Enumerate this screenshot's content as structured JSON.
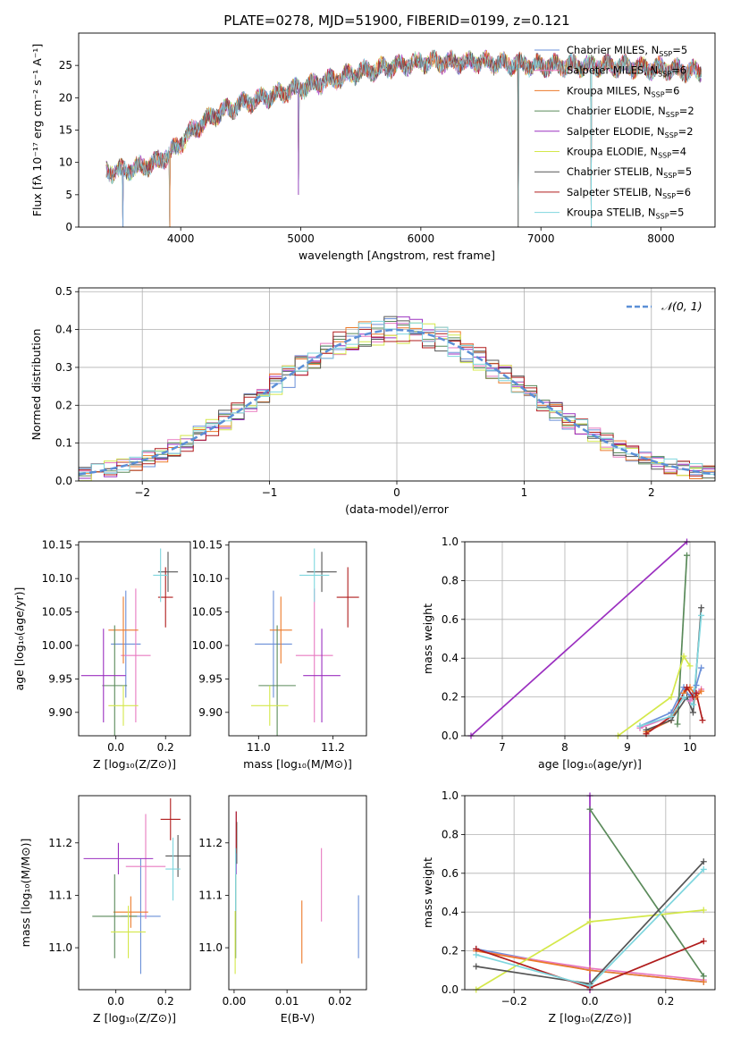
{
  "title": "PLATE=0278, MJD=51900, FIBERID=0199, z=0.121",
  "legend_entries": [
    {
      "label": "Chabrier MILES, N",
      "sub": "SSP",
      "tail": "=5",
      "color": "#6a8fd8"
    },
    {
      "label": "Salpeter MILES, N",
      "sub": "SSP",
      "tail": "=6",
      "color": "#e87ac0"
    },
    {
      "label": "Kroupa MILES, N",
      "sub": "SSP",
      "tail": "=6",
      "color": "#ec7a2a"
    },
    {
      "label": "Chabrier ELODIE, N",
      "sub": "SSP",
      "tail": "=2",
      "color": "#5a8a5a"
    },
    {
      "label": "Salpeter ELODIE, N",
      "sub": "SSP",
      "tail": "=2",
      "color": "#9b30c0"
    },
    {
      "label": "Kroupa ELODIE, N",
      "sub": "SSP",
      "tail": "=4",
      "color": "#d4e84a"
    },
    {
      "label": "Chabrier STELIB, N",
      "sub": "SSP",
      "tail": "=5",
      "color": "#555555"
    },
    {
      "label": "Salpeter STELIB, N",
      "sub": "SSP",
      "tail": "=6",
      "color": "#b01c1c"
    },
    {
      "label": "Kroupa STELIB, N",
      "sub": "SSP",
      "tail": "=5",
      "color": "#7fd6de"
    }
  ],
  "chart_data": [
    {
      "type": "line",
      "panel": "spectrum",
      "xlabel": "wavelength [Angstrom, rest frame]",
      "ylabel": "Flux [fλ 10⁻¹⁷ erg cm⁻² s⁻¹ A⁻¹]",
      "xlim": [
        3150,
        8450
      ],
      "ylim": [
        0,
        30
      ],
      "xticks": [
        4000,
        5000,
        6000,
        7000,
        8000
      ],
      "yticks": [
        0,
        5,
        10,
        15,
        20,
        25
      ],
      "grid": false,
      "legend": "right",
      "spectrum_range": [
        3380,
        8340
      ],
      "continuum": [
        [
          3380,
          8.5
        ],
        [
          3600,
          9
        ],
        [
          3800,
          10
        ],
        [
          3950,
          12
        ],
        [
          4100,
          15
        ],
        [
          4300,
          17.5
        ],
        [
          4500,
          19
        ],
        [
          4800,
          20.5
        ],
        [
          5100,
          22
        ],
        [
          5500,
          24
        ],
        [
          6000,
          25.5
        ],
        [
          6500,
          25.5
        ],
        [
          7000,
          25
        ],
        [
          7500,
          25
        ],
        [
          8000,
          24.5
        ],
        [
          8340,
          24
        ]
      ],
      "dropouts": [
        [
          3520,
          0
        ],
        [
          3910,
          0
        ],
        [
          4980,
          5
        ],
        [
          6810,
          0
        ],
        [
          7420,
          0
        ]
      ]
    },
    {
      "type": "histogram",
      "panel": "residuals",
      "xlabel": "(data-model)/error",
      "ylabel": "Normed distribution",
      "xlim": [
        -2.5,
        2.5
      ],
      "ylim": [
        0,
        0.51
      ],
      "xticks": [
        -2,
        -1,
        0,
        1,
        2
      ],
      "yticks": [
        0.0,
        0.1,
        0.2,
        0.3,
        0.4,
        0.5
      ],
      "grid": true,
      "legend": "top-right",
      "reference_label": "𝒩(0, 1)",
      "bin_width": 0.1
    },
    {
      "type": "scatter",
      "panel": "age-vs-Z",
      "xlabel": "Z [log₁₀(Z/Z⊙)]",
      "ylabel": "age  [log₁₀(age/yr)]",
      "xlim": [
        -0.15,
        0.3
      ],
      "ylim": [
        9.865,
        10.155
      ],
      "xticks": [
        0.0,
        0.2
      ],
      "yticks": [
        9.9,
        9.95,
        10.0,
        10.05,
        10.1,
        10.15
      ],
      "points": [
        {
          "series": 0,
          "x": 0.04,
          "xerr": 0.06,
          "y": 10.002,
          "yerr": 0.08
        },
        {
          "series": 1,
          "x": 0.08,
          "xerr": 0.06,
          "y": 9.985,
          "yerr": 0.1
        },
        {
          "series": 2,
          "x": 0.03,
          "xerr": 0.06,
          "y": 10.023,
          "yerr": 0.05
        },
        {
          "series": 3,
          "x": -0.005,
          "xerr": 0.05,
          "y": 9.94,
          "yerr": 0.09
        },
        {
          "series": 4,
          "x": -0.05,
          "xerr": 0.09,
          "y": 9.955,
          "yerr": 0.07
        },
        {
          "series": 5,
          "x": 0.03,
          "xerr": 0.06,
          "y": 9.91,
          "yerr": 0.03
        },
        {
          "series": 6,
          "x": 0.21,
          "xerr": 0.04,
          "y": 10.11,
          "yerr": 0.03
        },
        {
          "series": 7,
          "x": 0.2,
          "xerr": 0.03,
          "y": 10.072,
          "yerr": 0.045
        },
        {
          "series": 8,
          "x": 0.18,
          "xerr": 0.03,
          "y": 10.105,
          "yerr": 0.04
        }
      ]
    },
    {
      "type": "scatter",
      "panel": "age-vs-mass",
      "xlabel": "mass [log₁₀(M/M⊙)]",
      "ylabel": "",
      "xlim": [
        10.92,
        11.29
      ],
      "ylim": [
        9.865,
        10.155
      ],
      "xticks": [
        11.0,
        11.2
      ],
      "yticks": [
        9.9,
        9.95,
        10.0,
        10.05,
        10.1,
        10.15
      ],
      "points": [
        {
          "series": 0,
          "x": 11.04,
          "xerr": 0.05,
          "y": 10.002,
          "yerr": 0.08
        },
        {
          "series": 1,
          "x": 11.15,
          "xerr": 0.05,
          "y": 9.985,
          "yerr": 0.1
        },
        {
          "series": 2,
          "x": 11.06,
          "xerr": 0.03,
          "y": 10.023,
          "yerr": 0.05
        },
        {
          "series": 3,
          "x": 11.05,
          "xerr": 0.05,
          "y": 9.94,
          "yerr": 0.09
        },
        {
          "series": 4,
          "x": 11.17,
          "xerr": 0.05,
          "y": 9.955,
          "yerr": 0.07
        },
        {
          "series": 5,
          "x": 11.03,
          "xerr": 0.05,
          "y": 9.91,
          "yerr": 0.03
        },
        {
          "series": 6,
          "x": 11.17,
          "xerr": 0.04,
          "y": 10.11,
          "yerr": 0.03
        },
        {
          "series": 7,
          "x": 11.24,
          "xerr": 0.03,
          "y": 10.072,
          "yerr": 0.045
        },
        {
          "series": 8,
          "x": 11.15,
          "xerr": 0.04,
          "y": 10.105,
          "yerr": 0.04
        }
      ]
    },
    {
      "type": "line",
      "panel": "mass-weight-vs-age",
      "xlabel": "age  [log₁₀(age/yr)]",
      "ylabel": "mass weight",
      "xlim": [
        6.4,
        10.4
      ],
      "ylim": [
        0,
        1
      ],
      "xticks": [
        7,
        8,
        9,
        10
      ],
      "yticks": [
        0.0,
        0.2,
        0.4,
        0.6,
        0.8,
        1.0
      ],
      "grid": true,
      "series": [
        {
          "series": 0,
          "points": [
            [
              9.2,
              0.05
            ],
            [
              9.7,
              0.12
            ],
            [
              9.9,
              0.25
            ],
            [
              10.0,
              0.2
            ],
            [
              10.1,
              0.26
            ],
            [
              10.18,
              0.35
            ]
          ]
        },
        {
          "series": 1,
          "points": [
            [
              9.2,
              0.04
            ],
            [
              9.7,
              0.1
            ],
            [
              9.9,
              0.2
            ],
            [
              10.0,
              0.18
            ],
            [
              10.1,
              0.22
            ],
            [
              10.18,
              0.24
            ]
          ]
        },
        {
          "series": 2,
          "points": [
            [
              9.3,
              0.02
            ],
            [
              9.7,
              0.08
            ],
            [
              9.9,
              0.22
            ],
            [
              10.0,
              0.25
            ],
            [
              10.1,
              0.2
            ],
            [
              10.18,
              0.23
            ]
          ]
        },
        {
          "series": 3,
          "points": [
            [
              9.8,
              0.06
            ],
            [
              9.95,
              0.93
            ]
          ]
        },
        {
          "series": 4,
          "points": [
            [
              6.5,
              0.0
            ],
            [
              9.95,
              1.0
            ]
          ]
        },
        {
          "series": 5,
          "points": [
            [
              8.85,
              0.0
            ],
            [
              9.7,
              0.2
            ],
            [
              9.9,
              0.41
            ],
            [
              10.0,
              0.36
            ]
          ]
        },
        {
          "series": 6,
          "points": [
            [
              9.3,
              0.03
            ],
            [
              9.7,
              0.08
            ],
            [
              9.95,
              0.2
            ],
            [
              10.05,
              0.12
            ],
            [
              10.18,
              0.66
            ]
          ]
        },
        {
          "series": 7,
          "points": [
            [
              9.3,
              0.01
            ],
            [
              9.7,
              0.1
            ],
            [
              9.95,
              0.25
            ],
            [
              10.05,
              0.2
            ],
            [
              10.1,
              0.22
            ],
            [
              10.2,
              0.08
            ]
          ]
        },
        {
          "series": 8,
          "points": [
            [
              9.2,
              0.05
            ],
            [
              9.7,
              0.1
            ],
            [
              9.9,
              0.2
            ],
            [
              10.05,
              0.16
            ],
            [
              10.18,
              0.62
            ]
          ]
        }
      ]
    },
    {
      "type": "scatter",
      "panel": "mass-vs-Z",
      "xlabel": "Z [log₁₀(Z/Z⊙)]",
      "ylabel": "mass [log₁₀(M/M⊙)]",
      "xlim": [
        -0.15,
        0.3
      ],
      "ylim": [
        10.92,
        11.29
      ],
      "xticks": [
        0.0,
        0.2
      ],
      "yticks": [
        11.0,
        11.1,
        11.2
      ],
      "points": [
        {
          "series": 0,
          "x": 0.1,
          "xerr": 0.08,
          "y": 11.06,
          "yerr": 0.11
        },
        {
          "series": 1,
          "x": 0.12,
          "xerr": 0.08,
          "y": 11.155,
          "yerr": 0.1
        },
        {
          "series": 2,
          "x": 0.06,
          "xerr": 0.07,
          "y": 11.068,
          "yerr": 0.03
        },
        {
          "series": 3,
          "x": -0.005,
          "xerr": 0.09,
          "y": 11.06,
          "yerr": 0.08
        },
        {
          "series": 4,
          "x": 0.01,
          "xerr": 0.14,
          "y": 11.17,
          "yerr": 0.03
        },
        {
          "series": 5,
          "x": 0.05,
          "xerr": 0.07,
          "y": 11.03,
          "yerr": 0.05
        },
        {
          "series": 6,
          "x": 0.25,
          "xerr": 0.05,
          "y": 11.175,
          "yerr": 0.04
        },
        {
          "series": 7,
          "x": 0.22,
          "xerr": 0.04,
          "y": 11.245,
          "yerr": 0.04
        },
        {
          "series": 8,
          "x": 0.23,
          "xerr": 0.03,
          "y": 11.15,
          "yerr": 0.06
        }
      ]
    },
    {
      "type": "errorbar",
      "panel": "EBV",
      "xlabel": "E(B-V)",
      "ylabel": "",
      "xlim": [
        -0.001,
        0.025
      ],
      "ylim": [
        10.92,
        11.29
      ],
      "xticks": [
        0.0,
        0.01,
        0.02
      ],
      "yticks": [
        11.0,
        11.1,
        11.2
      ],
      "points": [
        {
          "series": 0,
          "x": 0.0235,
          "y": 11.04,
          "yerr": 0.06
        },
        {
          "series": 1,
          "x": 0.0165,
          "y": 11.12,
          "yerr": 0.07
        },
        {
          "series": 2,
          "x": 0.0128,
          "y": 11.03,
          "yerr": 0.06
        },
        {
          "series": 3,
          "x": 0.0003,
          "y": 11.06,
          "yerr": 0.08
        },
        {
          "series": 4,
          "x": 0.0004,
          "y": 11.2,
          "yerr": 0.06
        },
        {
          "series": 5,
          "x": 0.0002,
          "y": 11.01,
          "yerr": 0.06
        },
        {
          "series": 6,
          "x": 0.0005,
          "y": 11.2,
          "yerr": 0.04
        },
        {
          "series": 7,
          "x": 0.0004,
          "y": 11.22,
          "yerr": 0.04
        },
        {
          "series": 8,
          "x": 0.0003,
          "y": 11.13,
          "yerr": 0.06
        }
      ]
    },
    {
      "type": "line",
      "panel": "mass-weight-vs-Z",
      "xlabel": "Z [log₁₀(Z/Z⊙)]",
      "ylabel": "mass weight",
      "xlim": [
        -0.33,
        0.33
      ],
      "ylim": [
        0,
        1
      ],
      "xticks": [
        -0.2,
        0.0,
        0.2
      ],
      "yticks": [
        0.0,
        0.2,
        0.4,
        0.6,
        0.8,
        1.0
      ],
      "grid": true,
      "series": [
        {
          "series": 0,
          "points": [
            [
              -0.3,
              0.21
            ],
            [
              0.0,
              0.1
            ],
            [
              0.3,
              0.04
            ]
          ]
        },
        {
          "series": 1,
          "points": [
            [
              -0.3,
              0.2
            ],
            [
              0.0,
              0.11
            ],
            [
              0.3,
              0.05
            ]
          ]
        },
        {
          "series": 2,
          "points": [
            [
              -0.3,
              0.2
            ],
            [
              0.0,
              0.1
            ],
            [
              0.3,
              0.04
            ]
          ]
        },
        {
          "series": 3,
          "points": [
            [
              0.0,
              0.93
            ],
            [
              0.3,
              0.07
            ]
          ]
        },
        {
          "series": 4,
          "points": [
            [
              0.0,
              1.0
            ],
            [
              0.0,
              0.0
            ]
          ]
        },
        {
          "series": 5,
          "points": [
            [
              -0.3,
              0.0
            ],
            [
              0.0,
              0.35
            ],
            [
              0.3,
              0.41
            ]
          ]
        },
        {
          "series": 6,
          "points": [
            [
              -0.3,
              0.12
            ],
            [
              0.0,
              0.03
            ],
            [
              0.3,
              0.66
            ]
          ]
        },
        {
          "series": 7,
          "points": [
            [
              -0.3,
              0.21
            ],
            [
              0.0,
              0.01
            ],
            [
              0.3,
              0.25
            ]
          ]
        },
        {
          "series": 8,
          "points": [
            [
              -0.3,
              0.18
            ],
            [
              0.0,
              0.02
            ],
            [
              0.3,
              0.62
            ]
          ]
        }
      ]
    }
  ]
}
